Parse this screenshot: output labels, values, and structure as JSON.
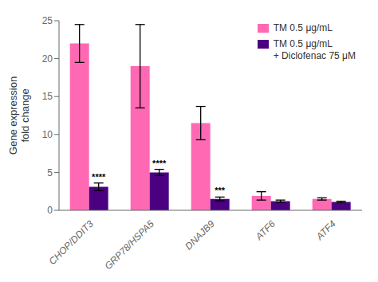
{
  "chart_data": {
    "type": "bar",
    "categories": [
      "CHOP/DDIT3",
      "GRP78/HSPA5",
      "DNAJB9",
      "ATF6",
      "ATF4"
    ],
    "series": [
      {
        "name": "TM 0.5 μg/mL",
        "color": "#FF69B4",
        "values": [
          22.0,
          19.0,
          11.5,
          1.9,
          1.5
        ],
        "errors": [
          2.5,
          5.5,
          2.2,
          0.55,
          0.15
        ]
      },
      {
        "name": "TM 0.5 μg/mL\n+ Diclofenac 75 μM",
        "color": "#4B0082",
        "values": [
          3.1,
          5.0,
          1.5,
          1.2,
          1.1
        ],
        "errors": [
          0.5,
          0.4,
          0.25,
          0.15,
          0.1
        ],
        "significance": [
          "****",
          "****",
          "***",
          null,
          null
        ]
      }
    ],
    "ylabel": "Gene expression\nfold change",
    "ylim": [
      0,
      25
    ],
    "yticks": [
      0,
      5,
      10,
      15,
      20,
      25
    ],
    "legend": "upper right",
    "grid": false
  }
}
